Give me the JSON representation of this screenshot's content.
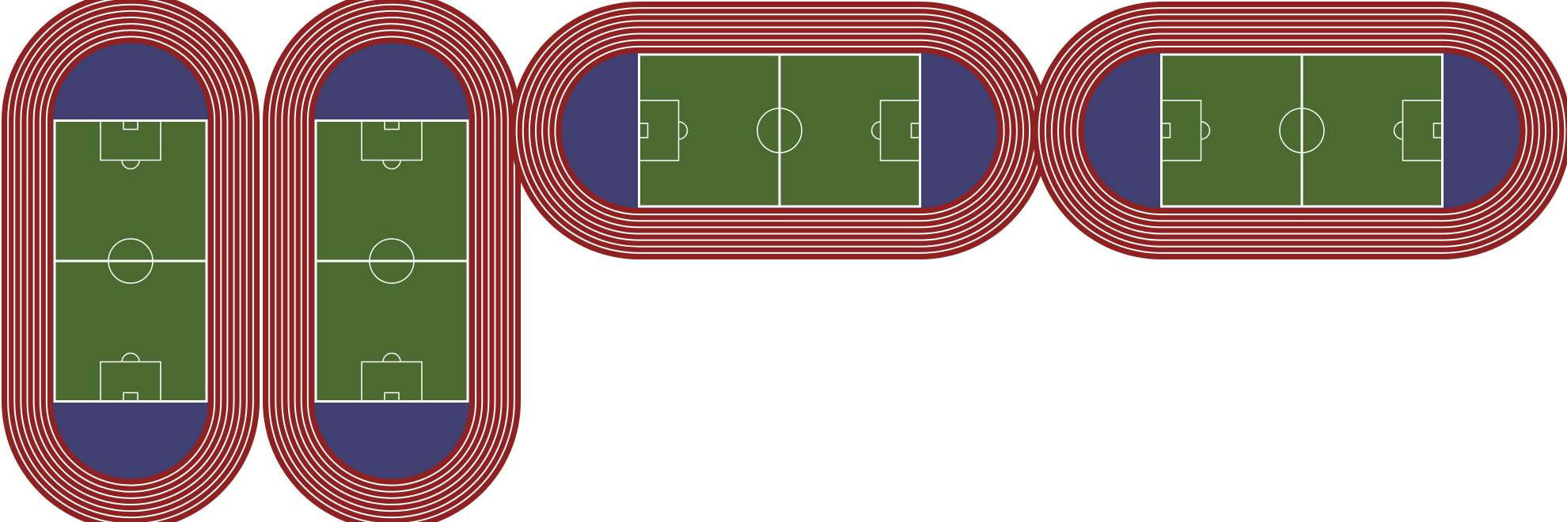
{
  "colors": {
    "background": "#ffffff",
    "track": "#8f2220",
    "lane_line": "#ffffff",
    "infield": "#3f3f72",
    "pitch": "#4b6a2f",
    "pitch_line": "#ffffff"
  },
  "track": {
    "lanes": 8
  },
  "stadiums": [
    {
      "id": "stadium-1",
      "orientation": "vertical"
    },
    {
      "id": "stadium-2",
      "orientation": "vertical"
    },
    {
      "id": "stadium-3",
      "orientation": "horizontal"
    },
    {
      "id": "stadium-4",
      "orientation": "horizontal"
    }
  ]
}
